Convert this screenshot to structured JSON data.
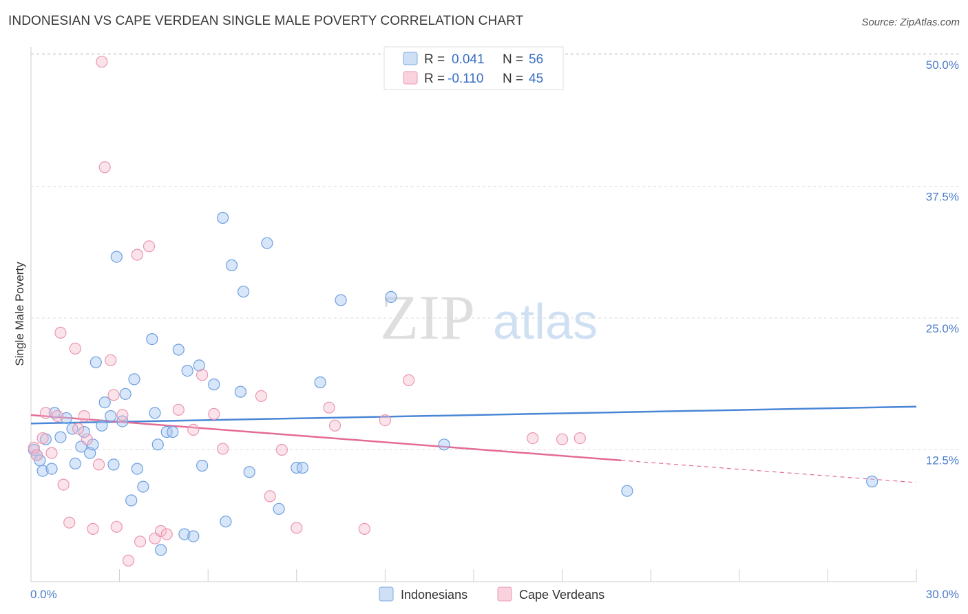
{
  "header": {
    "title": "INDONESIAN VS CAPE VERDEAN SINGLE MALE POVERTY CORRELATION CHART",
    "source": "Source: ZipAtlas.com"
  },
  "watermark": {
    "zip": "ZIP",
    "atlas": "atlas"
  },
  "legend_box": {
    "rows": [
      {
        "r_label": "R =",
        "r_value": "0.041",
        "n_label": "N =",
        "n_value": "56",
        "color": "#a9c8f2"
      },
      {
        "r_label": "R =",
        "r_value": "-0.110",
        "n_label": "N =",
        "n_value": "45",
        "color": "#f5b8ca"
      }
    ]
  },
  "bottom_legend": [
    {
      "label": "Indonesians",
      "color": "#a9c8f2"
    },
    {
      "label": "Cape Verdeans",
      "color": "#f5b8ca"
    }
  ],
  "chart_data": {
    "type": "scatter",
    "title": "INDONESIAN VS CAPE VERDEAN SINGLE MALE POVERTY CORRELATION CHART",
    "xlabel": "",
    "ylabel": "Single Male Poverty",
    "xlim": [
      0,
      30
    ],
    "ylim": [
      0,
      50
    ],
    "x_tick_labels": [
      "0.0%",
      "30.0%"
    ],
    "y_tick_labels": [
      "12.5%",
      "25.0%",
      "37.5%",
      "50.0%"
    ],
    "y_ticks": [
      12.5,
      25,
      37.5,
      50
    ],
    "grid": true,
    "legend_position": "top-center",
    "colors": {
      "indonesians": "#4a86d6",
      "cape_verdeans": "#e46b94"
    },
    "series": [
      {
        "name": "Indonesians",
        "r": 0.041,
        "n": 56,
        "trend": {
          "x": [
            0,
            30
          ],
          "y": [
            15.0,
            16.6
          ]
        },
        "points": [
          [
            0.1,
            12.5
          ],
          [
            0.2,
            12.0
          ],
          [
            0.3,
            11.5
          ],
          [
            0.4,
            10.5
          ],
          [
            0.5,
            13.5
          ],
          [
            0.7,
            10.7
          ],
          [
            0.8,
            16.0
          ],
          [
            1.0,
            13.7
          ],
          [
            1.2,
            15.5
          ],
          [
            1.4,
            14.5
          ],
          [
            1.5,
            11.2
          ],
          [
            1.7,
            12.8
          ],
          [
            1.8,
            14.2
          ],
          [
            2.0,
            12.2
          ],
          [
            2.1,
            13.0
          ],
          [
            2.2,
            20.8
          ],
          [
            2.4,
            14.8
          ],
          [
            2.5,
            17.0
          ],
          [
            2.7,
            15.7
          ],
          [
            2.8,
            11.1
          ],
          [
            2.9,
            30.8
          ],
          [
            3.1,
            15.2
          ],
          [
            3.2,
            17.8
          ],
          [
            3.4,
            7.7
          ],
          [
            3.5,
            19.2
          ],
          [
            3.6,
            10.7
          ],
          [
            3.8,
            9.0
          ],
          [
            4.1,
            23.0
          ],
          [
            4.2,
            16.0
          ],
          [
            4.3,
            13.0
          ],
          [
            4.4,
            3.0
          ],
          [
            4.6,
            14.2
          ],
          [
            4.8,
            14.2
          ],
          [
            5.0,
            22.0
          ],
          [
            5.2,
            4.5
          ],
          [
            5.3,
            20.0
          ],
          [
            5.5,
            4.3
          ],
          [
            5.7,
            20.5
          ],
          [
            5.8,
            11.0
          ],
          [
            6.2,
            18.7
          ],
          [
            6.5,
            34.5
          ],
          [
            6.6,
            5.7
          ],
          [
            6.8,
            30.0
          ],
          [
            7.1,
            18.0
          ],
          [
            7.2,
            27.5
          ],
          [
            7.4,
            10.4
          ],
          [
            8.0,
            32.1
          ],
          [
            8.4,
            6.9
          ],
          [
            9.0,
            10.8
          ],
          [
            9.2,
            10.8
          ],
          [
            9.8,
            18.9
          ],
          [
            10.5,
            26.7
          ],
          [
            12.2,
            27.0
          ],
          [
            14.0,
            13.0
          ],
          [
            20.2,
            8.6
          ],
          [
            28.5,
            9.5
          ]
        ]
      },
      {
        "name": "Cape Verdeans",
        "r": -0.11,
        "n": 45,
        "trend": {
          "x": [
            0,
            20
          ],
          "y": [
            15.8,
            11.5
          ]
        },
        "trend_dashed": {
          "x": [
            20,
            30
          ],
          "y": [
            11.5,
            9.4
          ]
        },
        "points": [
          [
            0.1,
            12.7
          ],
          [
            0.2,
            12.0
          ],
          [
            0.4,
            13.6
          ],
          [
            0.5,
            16.0
          ],
          [
            0.7,
            12.2
          ],
          [
            0.9,
            15.7
          ],
          [
            1.0,
            23.6
          ],
          [
            1.1,
            9.2
          ],
          [
            1.3,
            5.6
          ],
          [
            1.5,
            22.1
          ],
          [
            1.6,
            14.5
          ],
          [
            1.8,
            15.7
          ],
          [
            1.9,
            13.5
          ],
          [
            2.1,
            5.0
          ],
          [
            2.3,
            11.1
          ],
          [
            2.4,
            49.3
          ],
          [
            2.5,
            39.3
          ],
          [
            2.7,
            21.0
          ],
          [
            2.8,
            17.7
          ],
          [
            2.9,
            5.2
          ],
          [
            3.1,
            15.8
          ],
          [
            3.3,
            2.0
          ],
          [
            3.6,
            31.0
          ],
          [
            3.7,
            3.8
          ],
          [
            4.0,
            31.8
          ],
          [
            4.2,
            4.1
          ],
          [
            4.4,
            4.8
          ],
          [
            4.6,
            4.5
          ],
          [
            5.0,
            16.3
          ],
          [
            5.5,
            14.4
          ],
          [
            5.8,
            19.6
          ],
          [
            6.2,
            15.9
          ],
          [
            6.5,
            12.6
          ],
          [
            7.8,
            17.6
          ],
          [
            8.1,
            8.1
          ],
          [
            8.5,
            12.5
          ],
          [
            9.0,
            5.1
          ],
          [
            10.1,
            16.5
          ],
          [
            10.3,
            14.8
          ],
          [
            11.3,
            5.0
          ],
          [
            12.0,
            15.3
          ],
          [
            12.8,
            19.1
          ],
          [
            17.0,
            13.6
          ],
          [
            18.0,
            13.5
          ],
          [
            18.6,
            13.6
          ]
        ]
      }
    ]
  }
}
